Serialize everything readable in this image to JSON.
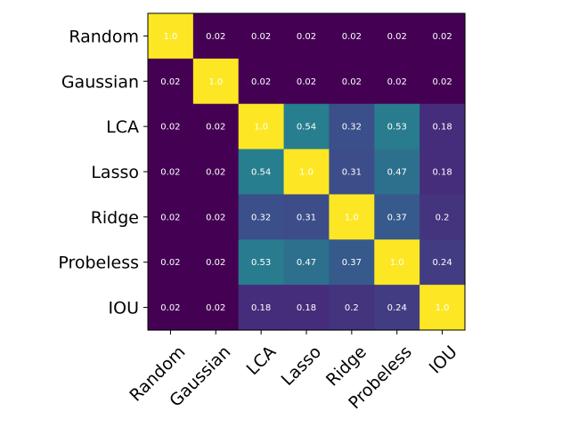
{
  "chart_data": {
    "type": "heatmap",
    "title": "",
    "xlabel": "",
    "ylabel": "",
    "colormap": "viridis",
    "vmin": 0.02,
    "vmax": 1.0,
    "text_color": "#ffffff",
    "rows": [
      "Random",
      "Gaussian",
      "LCA",
      "Lasso",
      "Ridge",
      "Probeless",
      "IOU"
    ],
    "columns": [
      "Random",
      "Gaussian",
      "LCA",
      "Lasso",
      "Ridge",
      "Probeless",
      "IOU"
    ],
    "values": [
      [
        1.0,
        0.02,
        0.02,
        0.02,
        0.02,
        0.02,
        0.02
      ],
      [
        0.02,
        1.0,
        0.02,
        0.02,
        0.02,
        0.02,
        0.02
      ],
      [
        0.02,
        0.02,
        1.0,
        0.54,
        0.32,
        0.53,
        0.18
      ],
      [
        0.02,
        0.02,
        0.54,
        1.0,
        0.31,
        0.47,
        0.18
      ],
      [
        0.02,
        0.02,
        0.32,
        0.31,
        1.0,
        0.37,
        0.2
      ],
      [
        0.02,
        0.02,
        0.53,
        0.47,
        0.37,
        1.0,
        0.24
      ],
      [
        0.02,
        0.02,
        0.18,
        0.18,
        0.2,
        0.24,
        1.0
      ]
    ],
    "value_labels": [
      [
        "1.0",
        "0.02",
        "0.02",
        "0.02",
        "0.02",
        "0.02",
        "0.02"
      ],
      [
        "0.02",
        "1.0",
        "0.02",
        "0.02",
        "0.02",
        "0.02",
        "0.02"
      ],
      [
        "0.02",
        "0.02",
        "1.0",
        "0.54",
        "0.32",
        "0.53",
        "0.18"
      ],
      [
        "0.02",
        "0.02",
        "0.54",
        "1.0",
        "0.31",
        "0.47",
        "0.18"
      ],
      [
        "0.02",
        "0.02",
        "0.32",
        "0.31",
        "1.0",
        "0.37",
        "0.2"
      ],
      [
        "0.02",
        "0.02",
        "0.53",
        "0.47",
        "0.37",
        "1.0",
        "0.24"
      ],
      [
        "0.02",
        "0.02",
        "0.18",
        "0.18",
        "0.2",
        "0.24",
        "1.0"
      ]
    ]
  }
}
